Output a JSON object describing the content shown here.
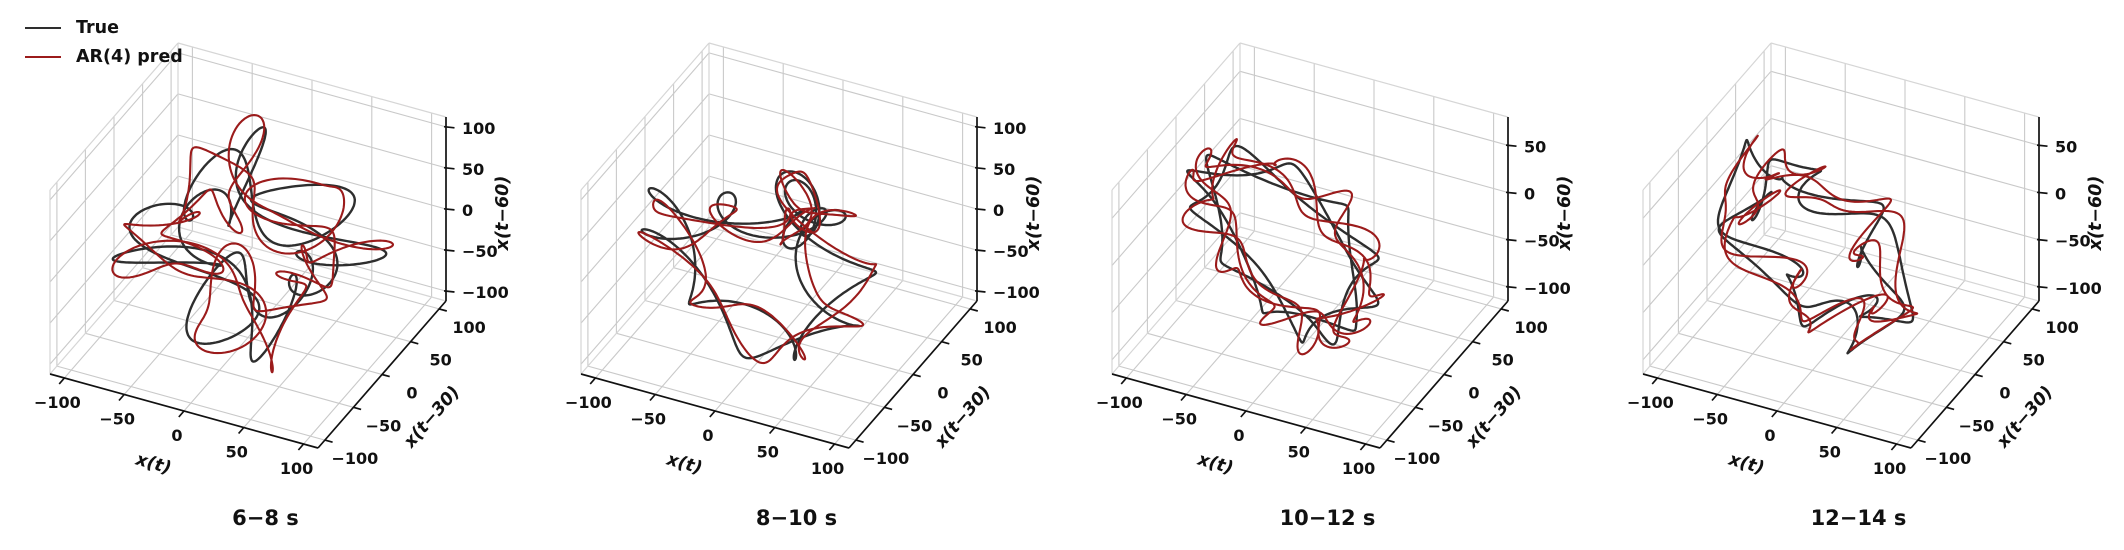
{
  "chart_data": {
    "type": "line",
    "subtype": "3d-trajectory-delay-embedding",
    "description": "True vs AR(4) predicted trajectories in time-delay embedding space, four time windows",
    "legend": [
      {
        "label": "True",
        "color": "#2e2e2e"
      },
      {
        "label": "AR(4) pred",
        "color": "#9b1b1b"
      }
    ],
    "legend_position": "upper-left",
    "grid": true,
    "colors": {
      "grid": "#c9c9c9",
      "pane_edge": "#d6d6d6",
      "axis": "#111111",
      "text": "#111111"
    },
    "axis_labels": {
      "x": "x(t)",
      "y": "x(t−30)",
      "z": "x(t−60)"
    },
    "plots": [
      {
        "title": "6−8 s",
        "xlim": [
          -112,
          112
        ],
        "ylim": [
          -112,
          112
        ],
        "zlim": [
          -112,
          112
        ],
        "xticks": [
          -100,
          -50,
          0,
          50,
          100
        ],
        "yticks": [
          -100,
          -50,
          0,
          50,
          100
        ],
        "zticks": [
          -100,
          -50,
          0,
          50,
          100
        ],
        "embedding_delay": 0.5,
        "samples": 900,
        "series": [
          {
            "name": "True",
            "color": "#2e2e2e",
            "offset": 0,
            "harmonics": [
              [
                46,
                2,
                0.7
              ],
              [
                30,
                5,
                2.3
              ],
              [
                22,
                9,
                4.1
              ],
              [
                13,
                13,
                1.6
              ]
            ]
          },
          {
            "name": "AR(4) pred",
            "color": "#9b1b1b",
            "offset": 0,
            "harmonics": [
              [
                47,
                2,
                0.78
              ],
              [
                29,
                5,
                2.42
              ],
              [
                23,
                9,
                3.97
              ],
              [
                12,
                13,
                1.78
              ],
              [
                6,
                23,
                0.9
              ]
            ]
          }
        ]
      },
      {
        "title": "8−10 s",
        "xlim": [
          -112,
          112
        ],
        "ylim": [
          -112,
          112
        ],
        "zlim": [
          -112,
          112
        ],
        "xticks": [
          -100,
          -50,
          0,
          50,
          100
        ],
        "yticks": [
          -100,
          -50,
          0,
          50,
          100
        ],
        "zticks": [
          -100,
          -50,
          0,
          50,
          100
        ],
        "embedding_delay": 0.48,
        "samples": 900,
        "series": [
          {
            "name": "True",
            "color": "#2e2e2e",
            "offset": -4,
            "harmonics": [
              [
                44,
                2,
                3.1
              ],
              [
                32,
                4,
                0.9
              ],
              [
                25,
                7,
                5.0
              ],
              [
                15,
                11,
                2.2
              ]
            ]
          },
          {
            "name": "AR(4) pred",
            "color": "#9b1b1b",
            "offset": -4,
            "harmonics": [
              [
                45,
                2,
                3.18
              ],
              [
                30,
                4,
                0.82
              ],
              [
                26,
                7,
                5.12
              ],
              [
                14,
                11,
                2.04
              ],
              [
                6,
                21,
                2.6
              ]
            ]
          }
        ]
      },
      {
        "title": "10−12 s",
        "xlim": [
          -112,
          112
        ],
        "ylim": [
          -112,
          112
        ],
        "zlim": [
          -115,
          80
        ],
        "xticks": [
          -100,
          -50,
          0,
          50,
          100
        ],
        "yticks": [
          -100,
          -50,
          0,
          50,
          100
        ],
        "zticks": [
          -100,
          -50,
          0,
          50
        ],
        "embedding_delay": 0.52,
        "samples": 800,
        "series": [
          {
            "name": "True",
            "color": "#2e2e2e",
            "offset": -14,
            "harmonics": [
              [
                60,
                3,
                1.2
              ],
              [
                15,
                6,
                4.4
              ],
              [
                9,
                10,
                2.8
              ],
              [
                5,
                17,
                0.6
              ]
            ]
          },
          {
            "name": "AR(4) pred",
            "color": "#9b1b1b",
            "offset": -14,
            "harmonics": [
              [
                61,
                3,
                1.27
              ],
              [
                14,
                6,
                4.5
              ],
              [
                10,
                10,
                2.68
              ],
              [
                5,
                17,
                0.75
              ],
              [
                5,
                25,
                1.4
              ]
            ]
          }
        ]
      },
      {
        "title": "12−14 s",
        "xlim": [
          -112,
          112
        ],
        "ylim": [
          -112,
          112
        ],
        "zlim": [
          -115,
          80
        ],
        "xticks": [
          -100,
          -50,
          0,
          50,
          100
        ],
        "yticks": [
          -100,
          -50,
          0,
          50,
          100
        ],
        "zticks": [
          -100,
          -50,
          0,
          50
        ],
        "embedding_delay": 0.78,
        "samples": 800,
        "series": [
          {
            "name": "True",
            "color": "#2e2e2e",
            "offset": -14,
            "harmonics": [
              [
                54,
                2,
                0.4
              ],
              [
                18,
                5,
                3.0
              ],
              [
                11,
                9,
                5.2
              ],
              [
                6,
                15,
                1.8
              ]
            ]
          },
          {
            "name": "AR(4) pred",
            "color": "#9b1b1b",
            "offset": -14,
            "harmonics": [
              [
                55,
                2,
                0.47
              ],
              [
                17,
                5,
                3.1
              ],
              [
                12,
                9,
                5.08
              ],
              [
                6,
                15,
                1.95
              ],
              [
                5,
                24,
                0.2
              ]
            ]
          }
        ]
      }
    ]
  }
}
